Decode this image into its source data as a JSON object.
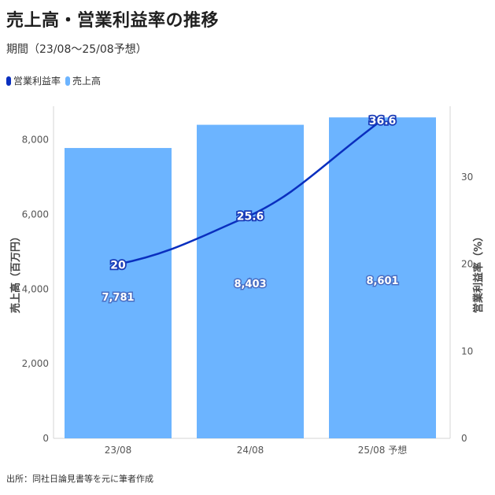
{
  "header": {
    "title": "売上高・営業利益率の推移",
    "subtitle": "期間（23/08～25/08予想）"
  },
  "legend": [
    {
      "label": "営業利益率",
      "color": "#0a2fbf"
    },
    {
      "label": "売上高",
      "color": "#6cb4ff"
    }
  ],
  "source": "出所：同社日論見書等を元に筆者作成",
  "chart_data": {
    "type": "bar",
    "categories": [
      "23/08",
      "24/08",
      "25/08 予想"
    ],
    "series": [
      {
        "name": "売上高",
        "type": "bar",
        "axis": "left",
        "values": [
          7781,
          8403,
          8601
        ],
        "value_labels": [
          "7,781",
          "8,403",
          "8,601"
        ],
        "color": "#6cb4ff"
      },
      {
        "name": "営業利益率",
        "type": "line",
        "axis": "right",
        "values": [
          20,
          25.6,
          36.6
        ],
        "value_labels": [
          "20",
          "25.6",
          "36.6"
        ],
        "color": "#0a2fbf"
      }
    ],
    "y_left": {
      "label": "売上高（百万円）",
      "ticks": [
        0,
        2000,
        4000,
        6000,
        8000
      ],
      "tick_labels": [
        "0",
        "2,000",
        "4,000",
        "6,000",
        "8,000"
      ],
      "range": [
        0,
        8900
      ]
    },
    "y_right": {
      "label": "営業利益率（%）",
      "ticks": [
        0,
        10,
        20,
        30
      ],
      "tick_labels": [
        "0",
        "10",
        "20",
        "30"
      ],
      "range": [
        0,
        36.6
      ]
    },
    "legend_position": "top-left",
    "grid": false
  }
}
